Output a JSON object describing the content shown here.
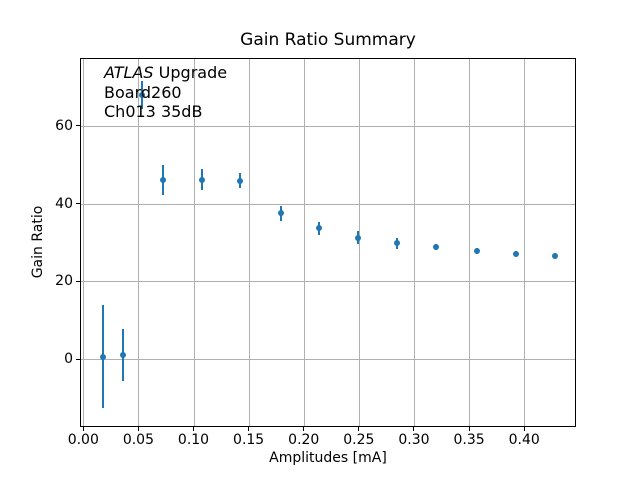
{
  "window": {
    "background": "#ffffff"
  },
  "title": "Gain Ratio Summary",
  "annotation": {
    "line1_italic": "ATLAS",
    "line1_rest": " Upgrade",
    "line2": "Board260",
    "line3": "Ch013 35dB"
  },
  "axes": {
    "xlabel": "Amplitudes [mA]",
    "ylabel": "Gain Ratio",
    "x_tick_labels": [
      "0.00",
      "0.05",
      "0.10",
      "0.15",
      "0.20",
      "0.25",
      "0.30",
      "0.35",
      "0.40"
    ],
    "y_tick_labels": [
      "0",
      "20",
      "40",
      "60"
    ]
  },
  "colors": {
    "marker": "#1f77b4",
    "grid": "#b0b0b0",
    "spine": "#000000",
    "text": "#000000",
    "background": "#ffffff"
  },
  "chart_data": {
    "type": "scatter",
    "title": "Gain Ratio Summary",
    "xlabel": "Amplitudes [mA]",
    "ylabel": "Gain Ratio",
    "xlim": [
      -0.003,
      0.447
    ],
    "ylim": [
      -17.5,
      77.5
    ],
    "x_ticks": [
      0.0,
      0.05,
      0.1,
      0.15,
      0.2,
      0.25,
      0.3,
      0.35,
      0.4
    ],
    "y_ticks": [
      0,
      20,
      40,
      60
    ],
    "grid": true,
    "legend": "none",
    "annotation_lines": [
      "ATLAS Upgrade",
      "Board260",
      "Ch013 35dB"
    ],
    "series": [
      {
        "name": "gain-ratio",
        "marker": "circle",
        "color": "#1f77b4",
        "errorbars": "vertical",
        "x": [
          0.017,
          0.035,
          0.052,
          0.071,
          0.107,
          0.141,
          0.178,
          0.213,
          0.248,
          0.284,
          0.319,
          0.356,
          0.392,
          0.427
        ],
        "y": [
          0.9,
          1.4,
          68.2,
          46.3,
          46.4,
          46.2,
          37.8,
          33.9,
          31.5,
          30.1,
          29.1,
          28.0,
          27.4,
          26.9
        ],
        "yerr": [
          13.3,
          6.7,
          3.7,
          3.8,
          2.7,
          2.0,
          1.9,
          1.7,
          1.7,
          1.4,
          0.9,
          0.8,
          0.7,
          0.7
        ]
      }
    ]
  }
}
